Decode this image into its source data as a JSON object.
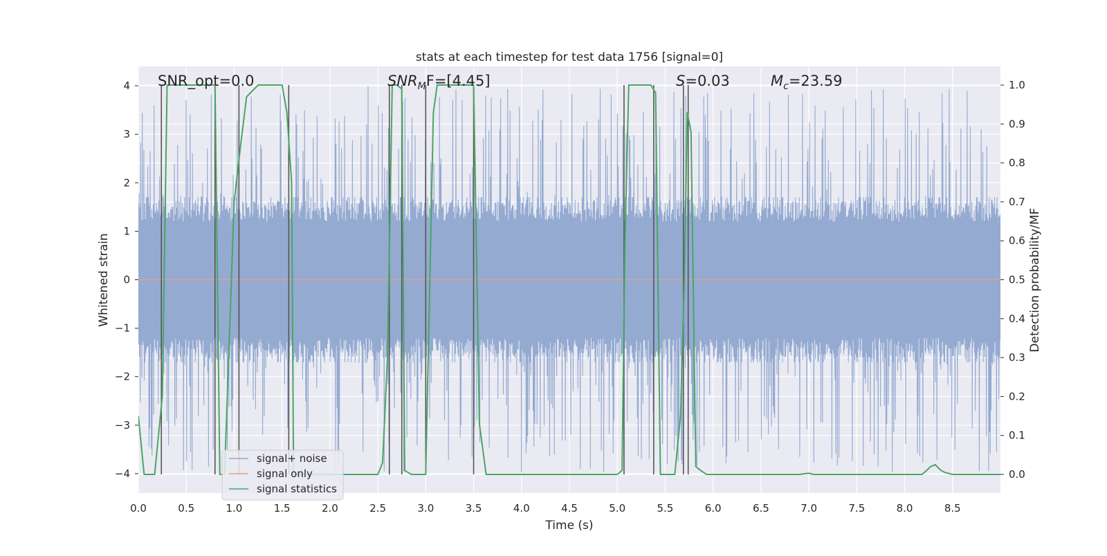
{
  "chart_data": {
    "type": "line",
    "title": "stats at each timestep for test data 1756 [signal=0]",
    "xlabel": "Time (s)",
    "ylabel": "Whitened strain",
    "y2label": "Detection probability/MF",
    "xlim": [
      0.0,
      9.0
    ],
    "ylim": [
      -4.4,
      4.4
    ],
    "y2lim": [
      -0.048,
      1.048
    ],
    "xticks": [
      "0.0",
      "0.5",
      "1.0",
      "1.5",
      "2.0",
      "2.5",
      "3.0",
      "3.5",
      "4.0",
      "4.5",
      "5.0",
      "5.5",
      "6.0",
      "6.5",
      "7.0",
      "7.5",
      "8.0",
      "8.5"
    ],
    "yticks": [
      "4",
      "3",
      "2",
      "1",
      "0",
      "−1",
      "−2",
      "−3",
      "−4"
    ],
    "y2ticks": [
      "1.0",
      "0.9",
      "0.8",
      "0.7",
      "0.6",
      "0.5",
      "0.4",
      "0.3",
      "0.2",
      "0.1",
      "0.0"
    ],
    "grid": true,
    "legend_position": "lower-left",
    "annotations": {
      "snr_opt": "SNR_opt=0.0",
      "snr_mf_main": "SNR",
      "snr_mf_sub": "M",
      "snr_mf_tail": "F=[4.45]",
      "s_main": "S",
      "s_tail": "=0.03",
      "mc_main": "M",
      "mc_sub": "c",
      "mc_tail": "=23.59"
    },
    "series": [
      {
        "name": "signal+ noise",
        "color": "#8fa6cf",
        "description_values": "whitened noise, amplitude mostly within ±2, spikes to about ±4",
        "amplitude_core": 1.6,
        "amplitude_peak": 4.0
      },
      {
        "name": "signal only",
        "color": "#e8a07f",
        "x": [
          0.0,
          9.0
        ],
        "y": [
          0.0,
          0.0
        ]
      },
      {
        "name": "signal statistics",
        "color": "#4aa564",
        "axis": "right",
        "x": [
          0.0,
          0.06,
          0.17,
          0.25,
          0.3,
          0.4,
          0.5,
          0.6,
          0.7,
          0.8,
          0.85,
          0.9,
          0.95,
          1.0,
          1.07,
          1.13,
          1.25,
          1.35,
          1.5,
          1.55,
          1.6,
          1.62,
          1.7,
          2.0,
          2.5,
          2.55,
          2.6,
          2.65,
          2.7,
          2.75,
          2.78,
          2.85,
          2.92,
          3.0,
          3.08,
          3.12,
          3.15,
          3.5,
          3.56,
          3.63,
          3.7,
          4.0,
          4.2,
          4.5,
          5.0,
          5.05,
          5.08,
          5.12,
          5.3,
          5.35,
          5.4,
          5.45,
          5.5,
          5.6,
          5.66,
          5.7,
          5.73,
          5.77,
          5.82,
          5.87,
          5.93,
          6.0,
          6.5,
          6.9,
          7.0,
          7.05,
          7.5,
          8.0,
          8.18,
          8.23,
          8.27,
          8.32,
          8.37,
          8.42,
          8.5,
          9.0
        ],
        "y": [
          0.15,
          0.0,
          0.0,
          0.2,
          1.0,
          1.0,
          1.0,
          1.0,
          1.0,
          1.0,
          0.0,
          0.0,
          0.35,
          0.7,
          0.85,
          0.97,
          1.0,
          1.0,
          1.0,
          0.93,
          0.75,
          0.0,
          0.0,
          0.0,
          0.0,
          0.03,
          0.3,
          1.0,
          1.0,
          0.99,
          0.01,
          0.0,
          0.0,
          0.0,
          0.93,
          1.0,
          1.0,
          1.0,
          0.13,
          0.0,
          0.0,
          0.0,
          0.0,
          0.0,
          0.0,
          0.01,
          0.6,
          1.0,
          1.0,
          1.0,
          0.98,
          0.0,
          0.0,
          0.0,
          0.15,
          0.5,
          0.93,
          0.88,
          0.02,
          0.01,
          0.0,
          0.0,
          0.0,
          0.0,
          0.003,
          0.0,
          0.0,
          0.0,
          0.0,
          0.01,
          0.02,
          0.025,
          0.012,
          0.005,
          0.0,
          0.0
        ]
      }
    ],
    "vlines_x": [
      0.24,
      0.8,
      1.05,
      1.57,
      2.62,
      2.75,
      3.0,
      3.5,
      5.07,
      5.38,
      5.69,
      5.74
    ]
  }
}
